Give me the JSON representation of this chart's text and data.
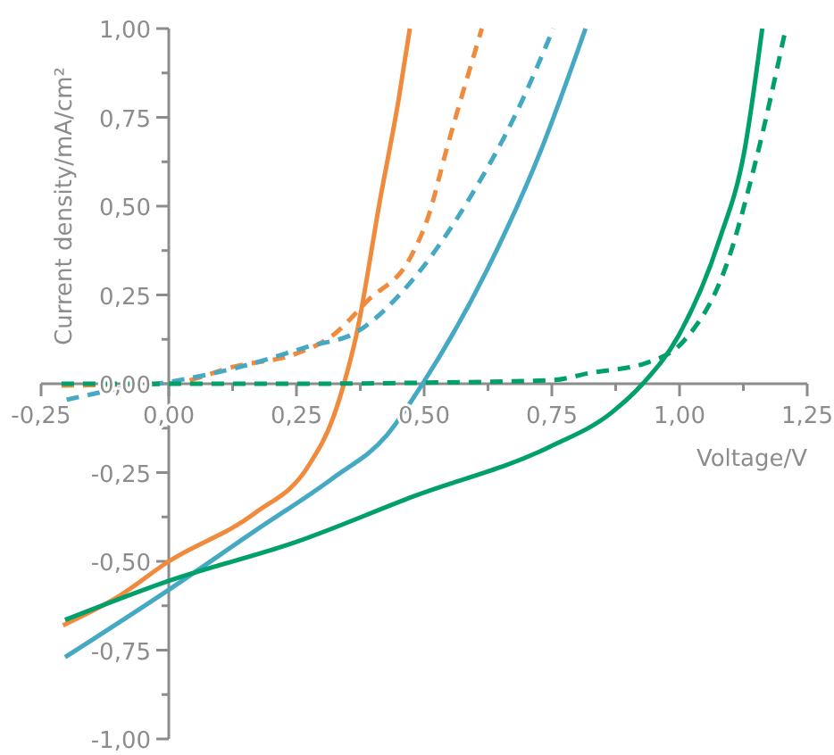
{
  "chart_data": {
    "type": "line",
    "xlabel": "Voltage/V",
    "ylabel": "Current density/mA/cm²",
    "xlim": [
      -0.25,
      1.25
    ],
    "ylim": [
      -1,
      1
    ],
    "xticks": [
      {
        "value": -0.25,
        "label": "-0,25"
      },
      {
        "value": 0,
        "label": "0,00"
      },
      {
        "value": 0.25,
        "label": "0,25"
      },
      {
        "value": 0.5,
        "label": "0,50"
      },
      {
        "value": 0.75,
        "label": "0,75"
      },
      {
        "value": 1,
        "label": "1,00"
      },
      {
        "value": 1.25,
        "label": "1,25"
      }
    ],
    "yticks": [
      {
        "value": -1,
        "label": "-1,00"
      },
      {
        "value": -0.75,
        "label": "-0,75"
      },
      {
        "value": -0.5,
        "label": "-0,50"
      },
      {
        "value": -0.25,
        "label": "-0,25"
      },
      {
        "value": 0,
        "label": "0,00"
      },
      {
        "value": 0.25,
        "label": "0,25"
      },
      {
        "value": 0.5,
        "label": "0,50"
      },
      {
        "value": 0.75,
        "label": "0,75"
      },
      {
        "value": 1,
        "label": "1,00"
      }
    ],
    "marker": "none",
    "series": [
      {
        "color": "#f08a3c",
        "line_style": "solid",
        "x": [
          -0.207,
          -0.1,
          0,
          0.168,
          0.274,
          0.322,
          0.343,
          0.367,
          0.414,
          0.45,
          0.472
        ],
        "values": [
          -0.68,
          -0.6,
          -0.5,
          -0.365,
          -0.23,
          -0.095,
          0.0,
          0.135,
          0.52,
          0.8,
          1.0
        ]
      },
      {
        "color": "#f08a3c",
        "line_style": "dashed",
        "x": [
          -0.21,
          -0.1,
          0,
          0.133,
          0.25,
          0.32,
          0.39,
          0.473,
          0.508,
          0.543,
          0.613
        ],
        "values": [
          -0.005,
          -0.003,
          0,
          0.05,
          0.085,
          0.135,
          0.235,
          0.355,
          0.47,
          0.655,
          1.0
        ]
      },
      {
        "color": "#45a9c3",
        "line_style": "solid",
        "x": [
          -0.203,
          0,
          0.168,
          0.322,
          0.427,
          0.497,
          0.623,
          0.728,
          0.816
        ],
        "values": [
          -0.77,
          -0.58,
          -0.415,
          -0.265,
          -0.145,
          0.0,
          0.32,
          0.655,
          1.0
        ]
      },
      {
        "color": "#45a9c3",
        "line_style": "dashed",
        "x": [
          -0.2,
          -0.1,
          0,
          0.133,
          0.274,
          0.367,
          0.473,
          0.588,
          0.683,
          0.753
        ],
        "values": [
          -0.045,
          -0.015,
          0.005,
          0.045,
          0.105,
          0.145,
          0.285,
          0.52,
          0.77,
          1.0
        ]
      },
      {
        "color": "#00a06a",
        "line_style": "solid",
        "x": [
          -0.203,
          0,
          0.25,
          0.483,
          0.742,
          0.868,
          0.928,
          0.998,
          1.078,
          1.127,
          1.162
        ],
        "values": [
          -0.665,
          -0.555,
          -0.445,
          -0.315,
          -0.18,
          -0.08,
          0.0,
          0.135,
          0.405,
          0.655,
          1.0
        ]
      },
      {
        "color": "#00a06a",
        "line_style": "dashed",
        "x": [
          -0.21,
          0.25,
          0.5,
          0.75,
          0.823,
          0.938,
          1.008,
          1.092,
          1.148,
          1.208
        ],
        "values": [
          0.0,
          0.0,
          0.003,
          0.01,
          0.03,
          0.06,
          0.12,
          0.335,
          0.62,
          1.0
        ]
      }
    ]
  }
}
